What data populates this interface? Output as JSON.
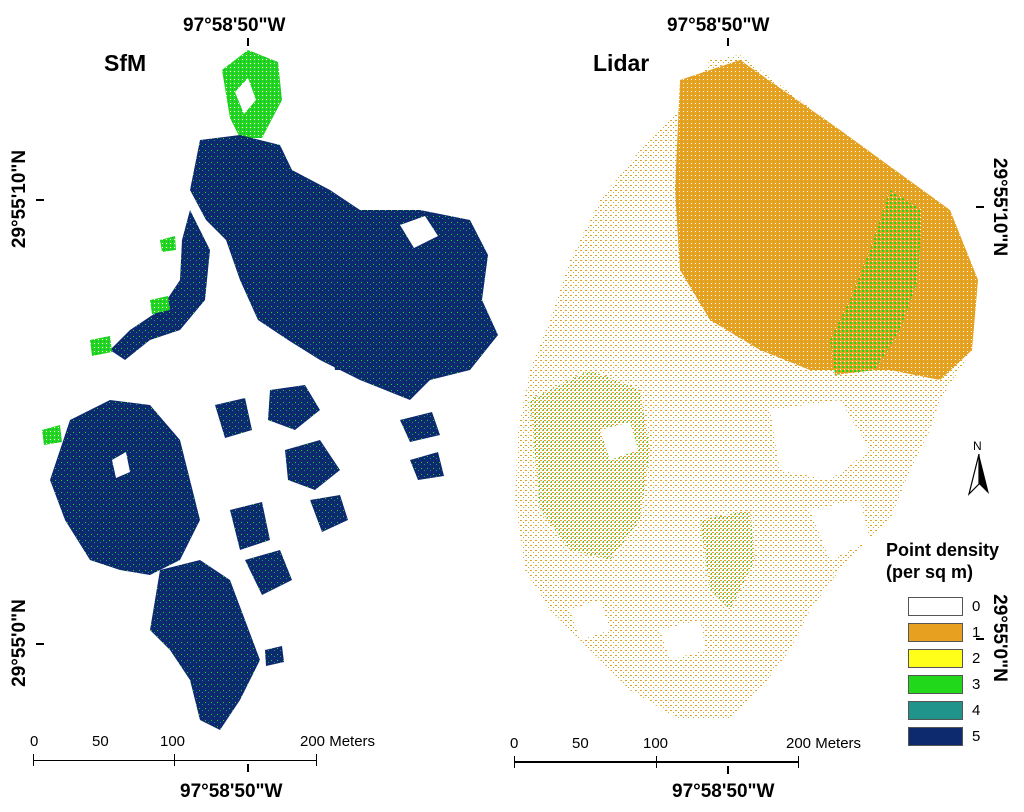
{
  "panels": {
    "left": {
      "title": "SfM",
      "lon_top": "97°58'50\"W",
      "lon_bottom": "97°58'50\"W",
      "lat_upper": "29°55'10\"N",
      "lat_lower": "29°55'0\"N"
    },
    "right": {
      "title": "Lidar",
      "lon_top": "97°58'50\"W",
      "lon_bottom": "97°58'50\"W",
      "lat_upper": "29°55'10\"N",
      "lat_lower": "29°55'0\"N"
    }
  },
  "scalebar": {
    "ticks": [
      "0",
      "50",
      "100",
      "200 Meters"
    ]
  },
  "north_arrow": {
    "label": "N",
    "icon": "north-arrow-icon"
  },
  "legend": {
    "title_line1": "Point density",
    "title_line2": "(per sq m)",
    "classes": [
      {
        "label": "0",
        "color": "#ffffff"
      },
      {
        "label": "1",
        "color": "#e8a020"
      },
      {
        "label": "2",
        "color": "#ffff1a"
      },
      {
        "label": "3",
        "color": "#22d81a"
      },
      {
        "label": "4",
        "color": "#20948a"
      },
      {
        "label": "5",
        "color": "#0d2a6e"
      }
    ]
  },
  "map_colors": {
    "sfm_dense": "#0d2a6e",
    "sfm_edge": "#22d81a",
    "sfm_mid": "#20948a",
    "lidar_base": "#e8a020",
    "lidar_mix": "#b8b030",
    "lidar_green": "#22d81a"
  }
}
